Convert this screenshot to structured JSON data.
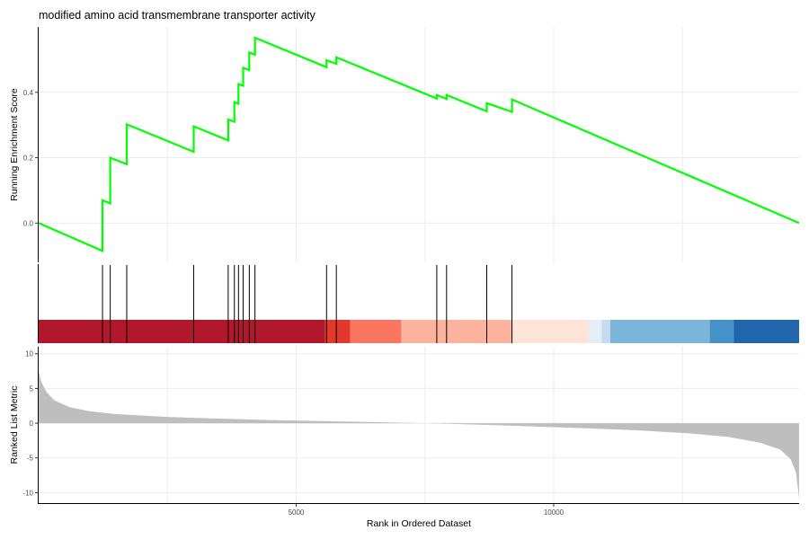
{
  "chart_data": {
    "type": "line",
    "title": "modified amino acid transmembrane transporter activity",
    "xlabel": "Rank in Ordered Dataset",
    "xlim": [
      0,
      14765
    ],
    "x_ticks": [
      5000,
      10000
    ],
    "x_grid": [
      2500,
      5000,
      7500,
      10000,
      12500
    ],
    "enrichment": {
      "ylabel": "Running Enrichment Score",
      "ylim": [
        -0.12,
        0.6
      ],
      "y_ticks": [
        0.0,
        0.2,
        0.4
      ],
      "color": "#00ff00",
      "points": [
        {
          "x": 0,
          "y": 0.0
        },
        {
          "x": 1240,
          "y": -0.085
        },
        {
          "x": 1240,
          "y": 0.07
        },
        {
          "x": 1390,
          "y": 0.06
        },
        {
          "x": 1390,
          "y": 0.2
        },
        {
          "x": 1710,
          "y": 0.18
        },
        {
          "x": 1710,
          "y": 0.302
        },
        {
          "x": 3010,
          "y": 0.218
        },
        {
          "x": 3010,
          "y": 0.296
        },
        {
          "x": 3680,
          "y": 0.253
        },
        {
          "x": 3680,
          "y": 0.317
        },
        {
          "x": 3800,
          "y": 0.31
        },
        {
          "x": 3800,
          "y": 0.37
        },
        {
          "x": 3880,
          "y": 0.365
        },
        {
          "x": 3880,
          "y": 0.425
        },
        {
          "x": 3970,
          "y": 0.42
        },
        {
          "x": 3970,
          "y": 0.475
        },
        {
          "x": 4090,
          "y": 0.468
        },
        {
          "x": 4090,
          "y": 0.522
        },
        {
          "x": 4200,
          "y": 0.515
        },
        {
          "x": 4200,
          "y": 0.567
        },
        {
          "x": 5590,
          "y": 0.477
        },
        {
          "x": 5590,
          "y": 0.498
        },
        {
          "x": 5780,
          "y": 0.487
        },
        {
          "x": 5780,
          "y": 0.507
        },
        {
          "x": 7730,
          "y": 0.381
        },
        {
          "x": 7730,
          "y": 0.392
        },
        {
          "x": 7920,
          "y": 0.38
        },
        {
          "x": 7920,
          "y": 0.392
        },
        {
          "x": 8700,
          "y": 0.342
        },
        {
          "x": 8700,
          "y": 0.367
        },
        {
          "x": 9190,
          "y": 0.34
        },
        {
          "x": 9190,
          "y": 0.378
        },
        {
          "x": 14765,
          "y": 0.0
        }
      ]
    },
    "hits": [
      1240,
      1390,
      1710,
      3010,
      3680,
      3800,
      3880,
      3970,
      4090,
      4200,
      5590,
      5780,
      7730,
      7920,
      8700,
      9190
    ],
    "color_bar": [
      {
        "from": 0,
        "to": 5560,
        "color": "#b2182b"
      },
      {
        "from": 5560,
        "to": 6050,
        "color": "#e3392d"
      },
      {
        "from": 6050,
        "to": 7040,
        "color": "#fb7660"
      },
      {
        "from": 7040,
        "to": 9180,
        "color": "#fcb29c"
      },
      {
        "from": 9180,
        "to": 10680,
        "color": "#fee3d8"
      },
      {
        "from": 10680,
        "to": 10930,
        "color": "#e4eef6"
      },
      {
        "from": 10930,
        "to": 11100,
        "color": "#c6dbef"
      },
      {
        "from": 11100,
        "to": 13030,
        "color": "#7bb6da"
      },
      {
        "from": 13030,
        "to": 13500,
        "color": "#4691c7"
      },
      {
        "from": 13500,
        "to": 14765,
        "color": "#2166ac"
      }
    ],
    "ranked_metric": {
      "ylabel": "Ranked List Metric",
      "ylim": [
        -11.5,
        11
      ],
      "y_ticks": [
        10,
        5,
        0,
        -5,
        -10
      ],
      "fill": "#bebebe",
      "profile": [
        {
          "x": 0,
          "y": 7.5
        },
        {
          "x": 50,
          "y": 6.0
        },
        {
          "x": 150,
          "y": 4.5
        },
        {
          "x": 300,
          "y": 3.3
        },
        {
          "x": 600,
          "y": 2.3
        },
        {
          "x": 1000,
          "y": 1.7
        },
        {
          "x": 1500,
          "y": 1.3
        },
        {
          "x": 2500,
          "y": 0.9
        },
        {
          "x": 3500,
          "y": 0.65
        },
        {
          "x": 4500,
          "y": 0.45
        },
        {
          "x": 5500,
          "y": 0.3
        },
        {
          "x": 6500,
          "y": 0.15
        },
        {
          "x": 7300,
          "y": 0.02
        },
        {
          "x": 7800,
          "y": -0.05
        },
        {
          "x": 8700,
          "y": -0.25
        },
        {
          "x": 9700,
          "y": -0.5
        },
        {
          "x": 10700,
          "y": -0.75
        },
        {
          "x": 11700,
          "y": -1.05
        },
        {
          "x": 12700,
          "y": -1.5
        },
        {
          "x": 13400,
          "y": -2.0
        },
        {
          "x": 14000,
          "y": -2.8
        },
        {
          "x": 14400,
          "y": -3.8
        },
        {
          "x": 14600,
          "y": -5.2
        },
        {
          "x": 14700,
          "y": -7.0
        },
        {
          "x": 14765,
          "y": -10.8
        }
      ]
    }
  }
}
